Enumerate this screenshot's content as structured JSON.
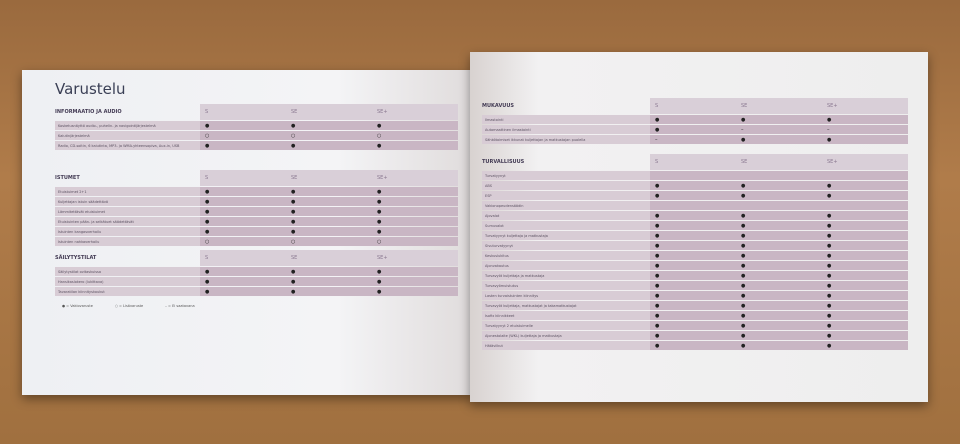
{
  "left": {
    "title": "Varustelu",
    "sections": [
      {
        "name": "INFORMAATIO JA AUDIO",
        "cols": [
          "S",
          "SE",
          "SE+"
        ],
        "rows": [
          {
            "label": "Kosketusnäyttö audio-, puhelin- ja navigointijärjestelmä",
            "v": [
              "●",
              "●",
              "●"
            ]
          },
          {
            "label": "Kaiutinjärjestelmä",
            "v": [
              "○",
              "○",
              "○"
            ]
          },
          {
            "label": "Radio, CD-soitin, 6 kaiutinta, MP3- ja WMA-yhteensopiva, Aux-in, USB",
            "v": [
              "●",
              "●",
              "●"
            ]
          }
        ]
      },
      {
        "name": "ISTUMET",
        "cols": [
          "S",
          "SE",
          "SE+"
        ],
        "rows": [
          {
            "label": "Etuistuimet 2+1",
            "v": [
              "●",
              "●",
              "●"
            ]
          },
          {
            "label": "Kuljettajan istuin säädettävä",
            "v": [
              "●",
              "●",
              "●"
            ]
          },
          {
            "label": "Lämmitettävät etuistuimet",
            "v": [
              "●",
              "●",
              "●"
            ]
          },
          {
            "label": "Etuistuinten pään- ja selkätuet säädettävät",
            "v": [
              "●",
              "●",
              "●"
            ]
          },
          {
            "label": "Istuinten kangasverhoilu",
            "v": [
              "●",
              "●",
              "●"
            ]
          },
          {
            "label": "Istuinten nahkaverhoilu",
            "v": [
              "○",
              "○",
              "○"
            ]
          }
        ]
      },
      {
        "name": "SÄILYTYSTILAT",
        "cols": [
          "S",
          "SE",
          "SE+"
        ],
        "rows": [
          {
            "label": "Säilytystilat ovitaskuissa",
            "v": [
              "●",
              "●",
              "●"
            ]
          },
          {
            "label": "Hansikaslokero (lukittava)",
            "v": [
              "●",
              "●",
              "●"
            ]
          },
          {
            "label": "Tavaratilan kiinnityskoukut",
            "v": [
              "●",
              "●",
              "●"
            ]
          }
        ]
      }
    ],
    "legend": [
      "● = Vakiovaruste",
      "○ = Lisävaruste",
      "– = Ei saatavana"
    ]
  },
  "right": {
    "sections": [
      {
        "name": "MUKAVUUS",
        "cols": [
          "S",
          "SE",
          "SE+"
        ],
        "rows": [
          {
            "label": "Ilmastointi",
            "v": [
              "●",
              "●",
              "●"
            ]
          },
          {
            "label": "Automaattinen ilmastointi",
            "v": [
              "●",
              "–",
              "–"
            ]
          },
          {
            "label": "Sähkötoimiset ikkunat kuljettajan ja matkustajan puolella",
            "v": [
              "–",
              "●",
              "●"
            ]
          }
        ]
      },
      {
        "name": "TURVALLISUUS",
        "cols": [
          "S",
          "SE",
          "SE+"
        ],
        "rows": [
          {
            "label": "Turvatyynyt",
            "v": [
              "",
              "",
              ""
            ]
          },
          {
            "label": "ABS",
            "v": [
              "●",
              "●",
              "●"
            ]
          },
          {
            "label": "ESP",
            "v": [
              "●",
              "●",
              "●"
            ]
          },
          {
            "label": "Vakionopeudensäädin",
            "v": [
              "",
              "",
              ""
            ]
          },
          {
            "label": "Ajovalot",
            "v": [
              "●",
              "●",
              "●"
            ]
          },
          {
            "label": "Sumuvalot",
            "v": [
              "●",
              "●",
              "●"
            ]
          },
          {
            "label": "Turvatyynyt kuljettaja ja matkustaja",
            "v": [
              "●",
              "●",
              "●"
            ]
          },
          {
            "label": "Sivuturvatyynyt",
            "v": [
              "●",
              "●",
              "●"
            ]
          },
          {
            "label": "Keskuslukitus",
            "v": [
              "●",
              "●",
              "●"
            ]
          },
          {
            "label": "Ajonvakautus",
            "v": [
              "●",
              "●",
              "●"
            ]
          },
          {
            "label": "Turvavyöt kuljettaja ja matkustaja",
            "v": [
              "●",
              "●",
              "●"
            ]
          },
          {
            "label": "Turvavyömuistutus",
            "v": [
              "●",
              "●",
              "●"
            ]
          },
          {
            "label": "Lasten turvaistuinten kiinnitys",
            "v": [
              "●",
              "●",
              "●"
            ]
          },
          {
            "label": "Turvavyöt kuljettaja, matkustajat ja takamatkustajat",
            "v": [
              "●",
              "●",
              "●"
            ]
          },
          {
            "label": "Isofix kiinnikkeet",
            "v": [
              "●",
              "●",
              "●"
            ]
          },
          {
            "label": "Turvatyynyt 2 etuistuimelle",
            "v": [
              "●",
              "●",
              "●"
            ]
          },
          {
            "label": "Ajonestolaite (WKL) kuljettaja ja matkustaja",
            "v": [
              "●",
              "●",
              "●"
            ]
          },
          {
            "label": "Hätävilkut",
            "v": [
              "●",
              "●",
              "●"
            ]
          }
        ]
      }
    ]
  }
}
